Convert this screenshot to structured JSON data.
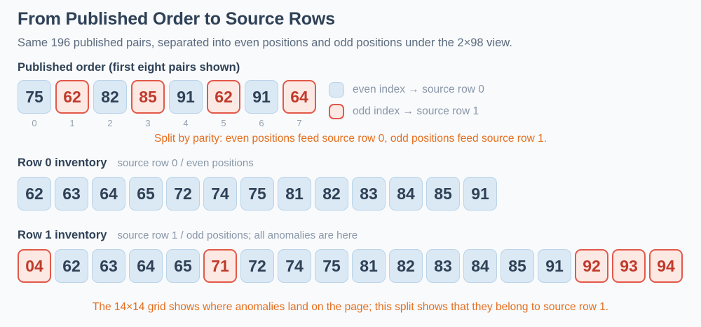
{
  "page": {
    "title": "From Published Order to Source Rows",
    "subtitle": "Same 196 published pairs, separated into even positions and odd positions under the 2×98 view.",
    "footer": "The 14×14 grid shows where anomalies land on the page; this split shows that they belong to source row 1."
  },
  "published": {
    "heading": "Published order (first eight pairs shown)",
    "caption": "Split by parity: even positions feed source row 0, odd positions feed source row 1.",
    "cells": [
      {
        "value": "75",
        "parity": "even",
        "index": "0"
      },
      {
        "value": "62",
        "parity": "odd",
        "index": "1"
      },
      {
        "value": "82",
        "parity": "even",
        "index": "2"
      },
      {
        "value": "85",
        "parity": "odd",
        "index": "3"
      },
      {
        "value": "91",
        "parity": "even",
        "index": "4"
      },
      {
        "value": "62",
        "parity": "odd",
        "index": "5"
      },
      {
        "value": "91",
        "parity": "even",
        "index": "6"
      },
      {
        "value": "64",
        "parity": "odd",
        "index": "7"
      }
    ],
    "legend": [
      {
        "swatch": "even",
        "label": "even index → source row 0"
      },
      {
        "swatch": "odd",
        "label": "odd index → source row 1"
      }
    ]
  },
  "row0": {
    "heading": "Row 0 inventory",
    "note": "source row 0 / even positions",
    "cells": [
      {
        "value": "62",
        "anomaly": false
      },
      {
        "value": "63",
        "anomaly": false
      },
      {
        "value": "64",
        "anomaly": false
      },
      {
        "value": "65",
        "anomaly": false
      },
      {
        "value": "72",
        "anomaly": false
      },
      {
        "value": "74",
        "anomaly": false
      },
      {
        "value": "75",
        "anomaly": false
      },
      {
        "value": "81",
        "anomaly": false
      },
      {
        "value": "82",
        "anomaly": false
      },
      {
        "value": "83",
        "anomaly": false
      },
      {
        "value": "84",
        "anomaly": false
      },
      {
        "value": "85",
        "anomaly": false
      },
      {
        "value": "91",
        "anomaly": false
      }
    ]
  },
  "row1": {
    "heading": "Row 1 inventory",
    "note": "source row 1 / odd positions; all anomalies are here",
    "cells": [
      {
        "value": "04",
        "anomaly": true
      },
      {
        "value": "62",
        "anomaly": false
      },
      {
        "value": "63",
        "anomaly": false
      },
      {
        "value": "64",
        "anomaly": false
      },
      {
        "value": "65",
        "anomaly": false
      },
      {
        "value": "71",
        "anomaly": true
      },
      {
        "value": "72",
        "anomaly": false
      },
      {
        "value": "74",
        "anomaly": false
      },
      {
        "value": "75",
        "anomaly": false
      },
      {
        "value": "81",
        "anomaly": false
      },
      {
        "value": "82",
        "anomaly": false
      },
      {
        "value": "83",
        "anomaly": false
      },
      {
        "value": "84",
        "anomaly": false
      },
      {
        "value": "85",
        "anomaly": false
      },
      {
        "value": "91",
        "anomaly": false
      },
      {
        "value": "92",
        "anomaly": true
      },
      {
        "value": "93",
        "anomaly": true
      },
      {
        "value": "94",
        "anomaly": true
      }
    ]
  },
  "colors": {
    "background": "#f8fafc",
    "heading_dark": "#2f4156",
    "subtitle_gray": "#5c6b7d",
    "note_gray": "#8a97a8",
    "index_gray": "#95a1af",
    "even_fill": "#dbe9f5",
    "even_border": "#b9d3e8",
    "odd_fill": "#fde9e4",
    "odd_border": "#e25849",
    "number_dark": "#2f4156",
    "number_red": "#c03a2b",
    "accent_orange": "#e56e1e"
  }
}
